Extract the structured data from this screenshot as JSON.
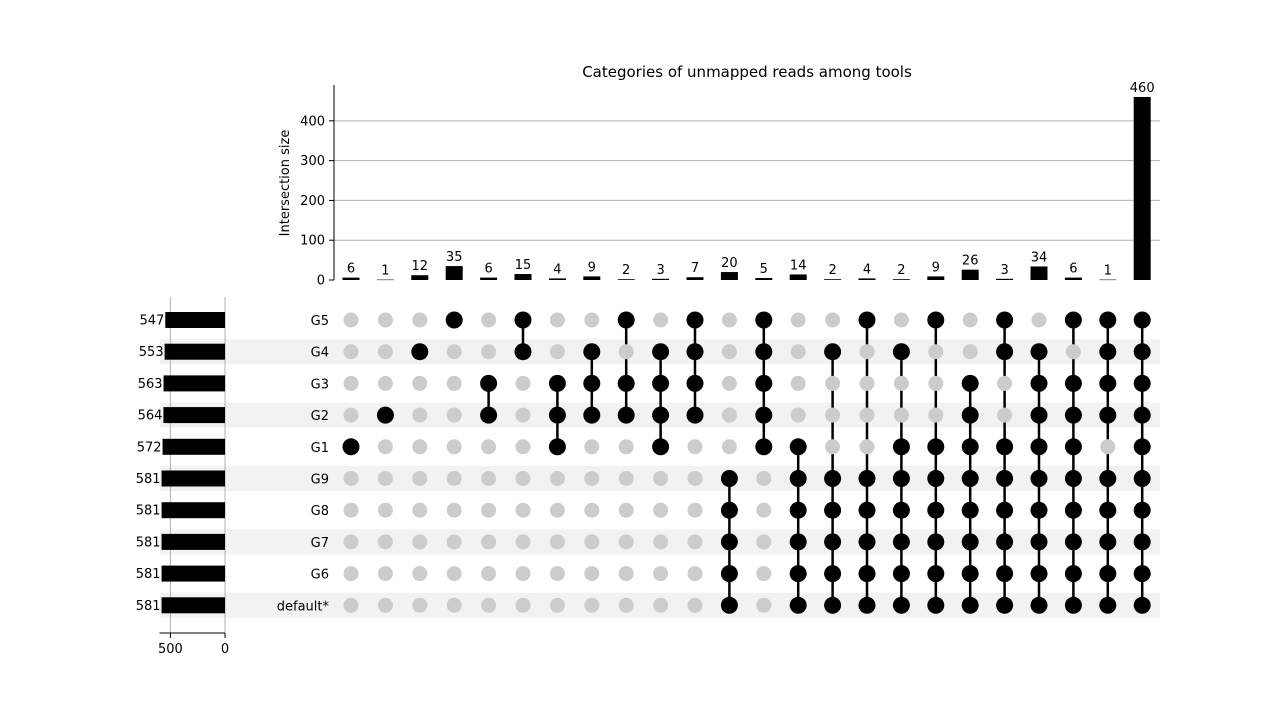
{
  "chart_data": {
    "type": "upset",
    "title": "Categories of unmapped reads among tools",
    "ylabel": "Intersection size",
    "ylim": [
      0,
      480
    ],
    "yticks": [
      0,
      100,
      200,
      300,
      400
    ],
    "set_size_ticks": [
      500,
      0
    ],
    "set_size_xlim": [
      0,
      600
    ],
    "sets": [
      {
        "name": "G5",
        "size": 547
      },
      {
        "name": "G4",
        "size": 553
      },
      {
        "name": "G3",
        "size": 563
      },
      {
        "name": "G2",
        "size": 564
      },
      {
        "name": "G1",
        "size": 572
      },
      {
        "name": "G9",
        "size": 581
      },
      {
        "name": "G8",
        "size": 581
      },
      {
        "name": "G7",
        "size": 581
      },
      {
        "name": "G6",
        "size": 581
      },
      {
        "name": "default*",
        "size": 581
      }
    ],
    "intersections": [
      {
        "size": 6,
        "members": [
          "G1"
        ]
      },
      {
        "size": 1,
        "members": [
          "G2"
        ]
      },
      {
        "size": 12,
        "members": [
          "G4"
        ]
      },
      {
        "size": 35,
        "members": [
          "G5"
        ]
      },
      {
        "size": 6,
        "members": [
          "G3",
          "G2"
        ]
      },
      {
        "size": 15,
        "members": [
          "G5",
          "G4"
        ]
      },
      {
        "size": 4,
        "members": [
          "G3",
          "G2",
          "G1"
        ]
      },
      {
        "size": 9,
        "members": [
          "G4",
          "G3",
          "G2"
        ]
      },
      {
        "size": 2,
        "members": [
          "G5",
          "G3",
          "G2"
        ]
      },
      {
        "size": 3,
        "members": [
          "G4",
          "G3",
          "G2",
          "G1"
        ]
      },
      {
        "size": 7,
        "members": [
          "G5",
          "G4",
          "G3",
          "G2"
        ]
      },
      {
        "size": 20,
        "members": [
          "G9",
          "G8",
          "G7",
          "G6",
          "default*"
        ]
      },
      {
        "size": 5,
        "members": [
          "G5",
          "G4",
          "G3",
          "G2",
          "G1"
        ]
      },
      {
        "size": 14,
        "members": [
          "G1",
          "G9",
          "G8",
          "G7",
          "G6",
          "default*"
        ]
      },
      {
        "size": 2,
        "members": [
          "G4",
          "G9",
          "G8",
          "G7",
          "G6",
          "default*"
        ]
      },
      {
        "size": 4,
        "members": [
          "G5",
          "G9",
          "G8",
          "G7",
          "G6",
          "default*"
        ]
      },
      {
        "size": 2,
        "members": [
          "G4",
          "G1",
          "G9",
          "G8",
          "G7",
          "G6",
          "default*"
        ]
      },
      {
        "size": 9,
        "members": [
          "G5",
          "G1",
          "G9",
          "G8",
          "G7",
          "G6",
          "default*"
        ]
      },
      {
        "size": 26,
        "members": [
          "G3",
          "G2",
          "G1",
          "G9",
          "G8",
          "G7",
          "G6",
          "default*"
        ]
      },
      {
        "size": 3,
        "members": [
          "G5",
          "G4",
          "G1",
          "G9",
          "G8",
          "G7",
          "G6",
          "default*"
        ]
      },
      {
        "size": 34,
        "members": [
          "G4",
          "G3",
          "G2",
          "G1",
          "G9",
          "G8",
          "G7",
          "G6",
          "default*"
        ]
      },
      {
        "size": 6,
        "members": [
          "G5",
          "G3",
          "G2",
          "G1",
          "G9",
          "G8",
          "G7",
          "G6",
          "default*"
        ]
      },
      {
        "size": 1,
        "members": [
          "G5",
          "G4",
          "G3",
          "G2",
          "G9",
          "G8",
          "G7",
          "G6",
          "default*"
        ]
      },
      {
        "size": 460,
        "members": [
          "G5",
          "G4",
          "G3",
          "G2",
          "G1",
          "G9",
          "G8",
          "G7",
          "G6",
          "default*"
        ]
      }
    ],
    "grid": "horizontal",
    "colors": {
      "bar": "#000000",
      "active_dot": "#000000",
      "inactive_dot": "#cccccc",
      "row_shade": "#f2f2f2",
      "gridline": "#b0b0b0"
    }
  }
}
